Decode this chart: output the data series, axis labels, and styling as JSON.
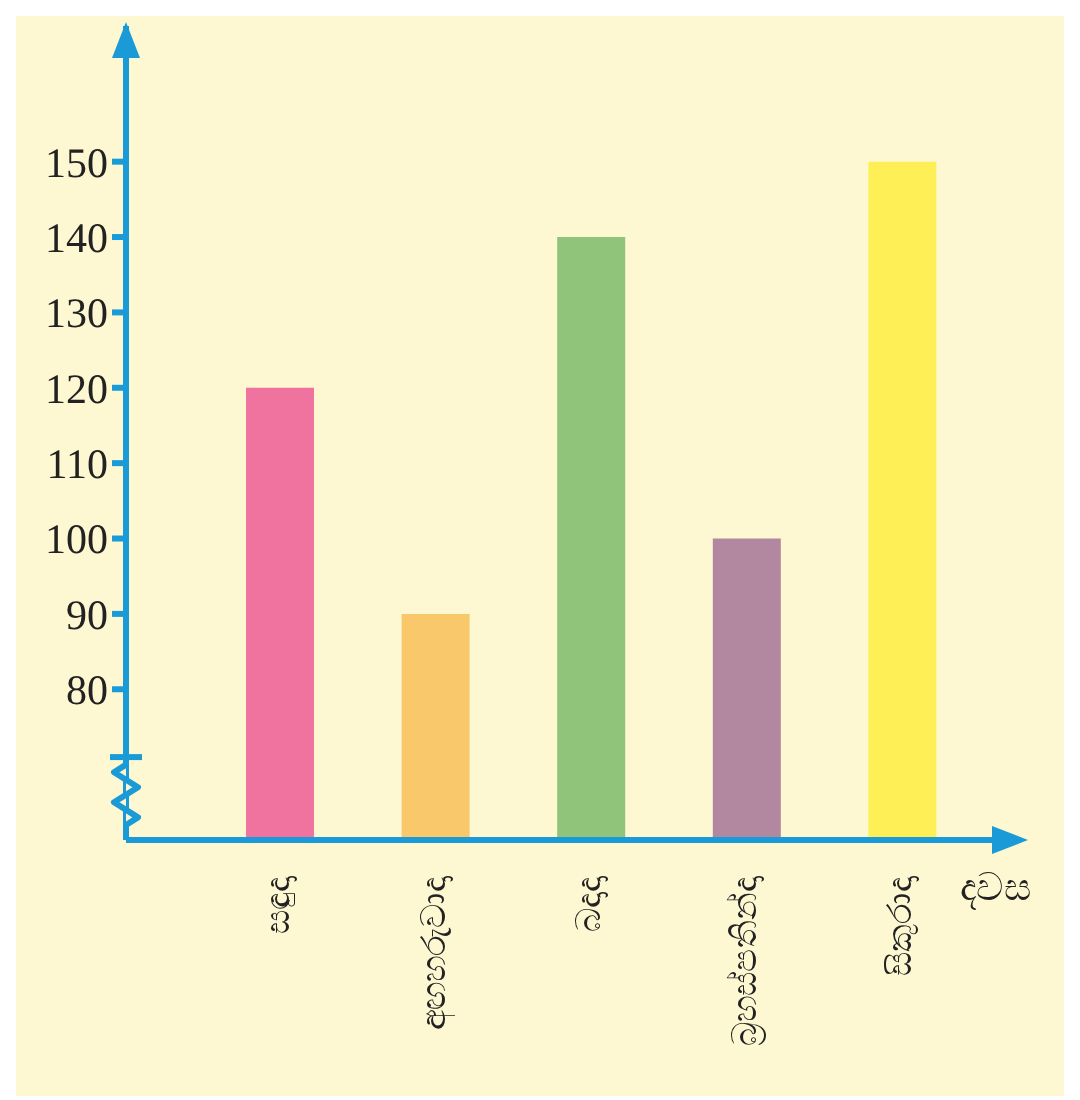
{
  "chart_data": {
    "type": "bar",
    "xlabel": "දවස",
    "categories": [
      "සඳුදා",
      "අඟහරුවාදා",
      "බදාදා",
      "බ්‍රහස්පතින්දා",
      "සිකුරාදා"
    ],
    "values": [
      120,
      90,
      140,
      100,
      150
    ],
    "colors": [
      "#ef729f",
      "#f8c86b",
      "#8fc47a",
      "#b1889f",
      "#fdef55"
    ],
    "ylim": [
      60,
      168
    ],
    "yticks": [
      80,
      90,
      100,
      110,
      120,
      130,
      140,
      150
    ],
    "grid": false
  }
}
